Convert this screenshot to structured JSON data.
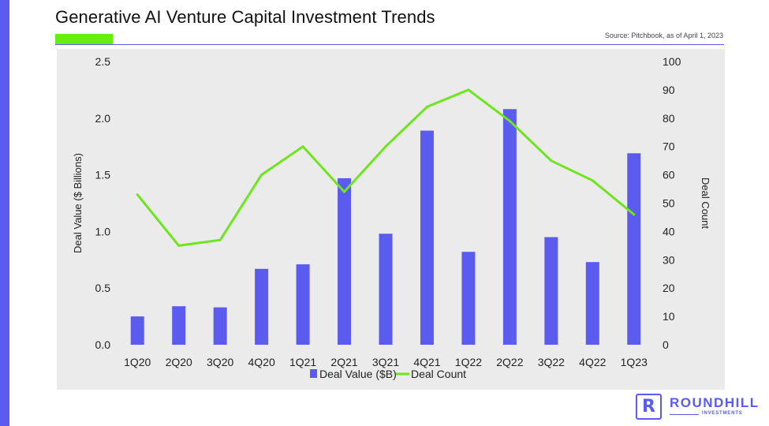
{
  "header": {
    "title": "Generative AI Venture Capital Investment Trends",
    "source": "Source: Pitchbook, as of April 1, 2023"
  },
  "colors": {
    "brand": "#5b5bef",
    "accent_green": "#66ee11",
    "bars": "#5b5bef",
    "line": "#6ee51d",
    "plot_background": "#ebebeb"
  },
  "logo": {
    "mark": "R",
    "name": "ROUNDHILL",
    "sub": "INVESTMENTS",
    "icon": "roundhill-r-icon"
  },
  "chart_data": {
    "type": "bar",
    "categories": [
      "1Q20",
      "2Q20",
      "3Q20",
      "4Q20",
      "1Q21",
      "2Q21",
      "3Q21",
      "4Q21",
      "1Q22",
      "2Q22",
      "3Q22",
      "4Q22",
      "1Q23"
    ],
    "series": [
      {
        "name": "Deal Value ($B)",
        "type": "bar",
        "axis": "left",
        "values": [
          0.25,
          0.34,
          0.33,
          0.67,
          0.71,
          1.47,
          0.98,
          1.89,
          0.82,
          2.08,
          0.95,
          0.73,
          1.69
        ]
      },
      {
        "name": "Deal Count",
        "type": "line",
        "axis": "right",
        "values": [
          53,
          35,
          37,
          60,
          70,
          54,
          70,
          84,
          90,
          79,
          65,
          58,
          46
        ]
      }
    ],
    "ylabel": "Deal Value ($ Billions)",
    "y2label": "Deal Count",
    "ylim": [
      0,
      2.5
    ],
    "y2lim": [
      0,
      100
    ],
    "yticks": [
      "0.0",
      "0.5",
      "1.0",
      "1.5",
      "2.0",
      "2.5"
    ],
    "y2ticks": [
      "0",
      "10",
      "20",
      "30",
      "40",
      "50",
      "60",
      "70",
      "80",
      "90",
      "100"
    ],
    "grid": false,
    "legend": "bottom"
  }
}
